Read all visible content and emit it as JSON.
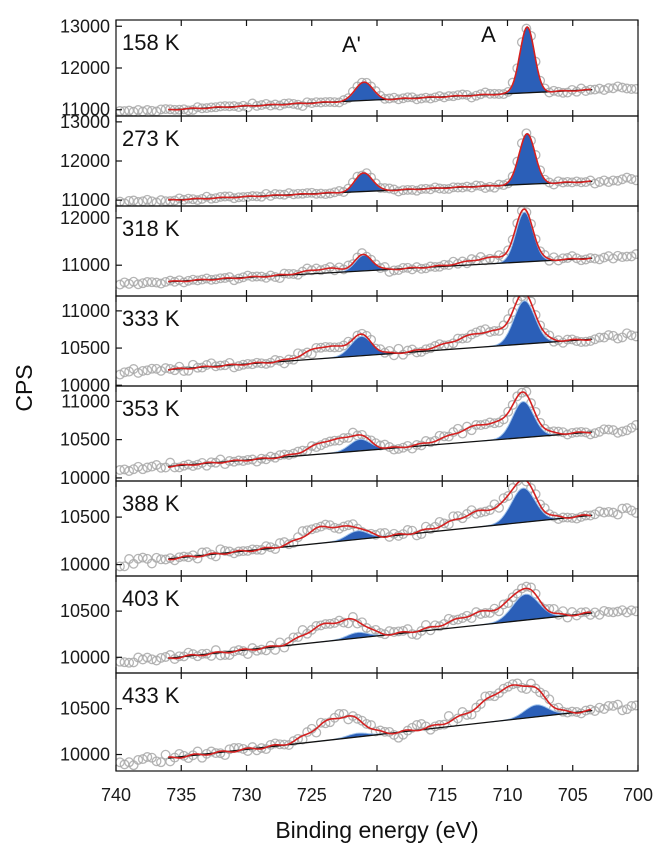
{
  "chart_data": {
    "type": "line",
    "xlabel": "Binding energy (eV)",
    "ylabel": "CPS",
    "xlim": [
      740,
      700
    ],
    "x_reversed": true,
    "xticks": [
      740,
      735,
      730,
      725,
      720,
      715,
      710,
      705,
      700
    ],
    "peak_labels": [
      {
        "text": "A'",
        "x": 721.0
      },
      {
        "text": "A",
        "x": 708.8
      }
    ],
    "colors": {
      "data": "#a8a8a8",
      "envelope": "#d42020",
      "baseline": "#111111",
      "peak_fill": "#2b5fb8",
      "peak_edge": "#9cc0ea"
    },
    "panels": [
      {
        "label": "158 K",
        "ylim": [
          10850,
          13150
        ],
        "yticks": [
          11000,
          12000,
          13000
        ],
        "x_start": 740,
        "x_end": 700,
        "fit_start": 736,
        "fit_end": 703.5,
        "baseline": [
          11000,
          11480
        ],
        "noise": 45,
        "peaks": [
          {
            "x": 721.0,
            "h": 450,
            "w": 0.65
          },
          {
            "x": 708.5,
            "h": 1580,
            "w": 0.55
          }
        ],
        "bumps": []
      },
      {
        "label": "273 K",
        "ylim": [
          10850,
          13150
        ],
        "yticks": [
          11000,
          12000,
          13000
        ],
        "x_start": 740,
        "x_end": 700,
        "fit_start": 736,
        "fit_end": 703.5,
        "baseline": [
          11000,
          11480
        ],
        "noise": 45,
        "peaks": [
          {
            "x": 721.0,
            "h": 480,
            "w": 0.65
          },
          {
            "x": 708.5,
            "h": 1300,
            "w": 0.6
          }
        ],
        "bumps": []
      },
      {
        "label": "318 K",
        "ylim": [
          10350,
          12250
        ],
        "yticks": [
          11000,
          12000
        ],
        "x_start": 740,
        "x_end": 700,
        "fit_start": 736,
        "fit_end": 703.5,
        "baseline": [
          10650,
          11150
        ],
        "noise": 50,
        "peaks": [
          {
            "x": 721.0,
            "h": 330,
            "w": 0.65
          },
          {
            "x": 708.7,
            "h": 1050,
            "w": 0.65
          }
        ],
        "bumps": [
          {
            "x": 724,
            "h": 90,
            "w": 1.5
          },
          {
            "x": 711,
            "h": 130,
            "w": 2
          }
        ]
      },
      {
        "label": "333 K",
        "ylim": [
          9990,
          11200
        ],
        "yticks": [
          10000,
          10500,
          11000
        ],
        "x_start": 740,
        "x_end": 700,
        "fit_start": 736,
        "fit_end": 703.5,
        "baseline": [
          10210,
          10620
        ],
        "noise": 40,
        "peaks": [
          {
            "x": 721.2,
            "h": 260,
            "w": 0.8
          },
          {
            "x": 708.7,
            "h": 580,
            "w": 0.8
          }
        ],
        "bumps": [
          {
            "x": 724,
            "h": 160,
            "w": 1.4
          },
          {
            "x": 711.5,
            "h": 200,
            "w": 2.4
          }
        ]
      },
      {
        "label": "353 K",
        "ylim": [
          9960,
          11200
        ],
        "yticks": [
          10000,
          10500,
          11000
        ],
        "x_start": 740,
        "x_end": 700,
        "fit_start": 736,
        "fit_end": 703.5,
        "baseline": [
          10150,
          10600
        ],
        "noise": 40,
        "peaks": [
          {
            "x": 721.3,
            "h": 150,
            "w": 0.8
          },
          {
            "x": 708.8,
            "h": 470,
            "w": 0.8
          }
        ],
        "bumps": [
          {
            "x": 723.5,
            "h": 170,
            "w": 1.5
          },
          {
            "x": 711.5,
            "h": 220,
            "w": 2.4
          }
        ]
      },
      {
        "label": "388 K",
        "ylim": [
          9880,
          10880
        ],
        "yticks": [
          10000,
          10500
        ],
        "x_start": 740,
        "x_end": 700,
        "fit_start": 736,
        "fit_end": 703.5,
        "baseline": [
          10060,
          10520
        ],
        "noise": 45,
        "peaks": [
          {
            "x": 721.5,
            "h": 90,
            "w": 0.8
          },
          {
            "x": 708.8,
            "h": 360,
            "w": 0.9
          }
        ],
        "bumps": [
          {
            "x": 724,
            "h": 170,
            "w": 1.5
          },
          {
            "x": 711.5,
            "h": 170,
            "w": 2.4
          }
        ]
      },
      {
        "label": "403 K",
        "ylim": [
          9830,
          10880
        ],
        "yticks": [
          10000,
          10500
        ],
        "x_start": 740,
        "x_end": 700,
        "fit_start": 736,
        "fit_end": 703.5,
        "baseline": [
          9990,
          10480
        ],
        "noise": 45,
        "peaks": [
          {
            "x": 721.5,
            "h": 60,
            "w": 0.8
          },
          {
            "x": 708.6,
            "h": 280,
            "w": 1.0
          }
        ],
        "bumps": [
          {
            "x": 724.2,
            "h": 160,
            "w": 1.4
          },
          {
            "x": 722,
            "h": 110,
            "w": 1.2
          },
          {
            "x": 711.5,
            "h": 140,
            "w": 2.4
          }
        ]
      },
      {
        "label": "433 K",
        "ylim": [
          9820,
          10890
        ],
        "yticks": [
          10000,
          10500
        ],
        "x_start": 740,
        "x_end": 700,
        "fit_start": 736,
        "fit_end": 703.5,
        "baseline": [
          9960,
          10480
        ],
        "noise": 50,
        "peaks": [
          {
            "x": 721.5,
            "h": 40,
            "w": 0.8
          },
          {
            "x": 707.8,
            "h": 130,
            "w": 0.9
          }
        ],
        "bumps": [
          {
            "x": 723.8,
            "h": 170,
            "w": 1.4
          },
          {
            "x": 722,
            "h": 120,
            "w": 1.2
          },
          {
            "x": 709.5,
            "h": 250,
            "w": 1.6
          },
          {
            "x": 711.5,
            "h": 140,
            "w": 2.2
          }
        ]
      }
    ]
  }
}
